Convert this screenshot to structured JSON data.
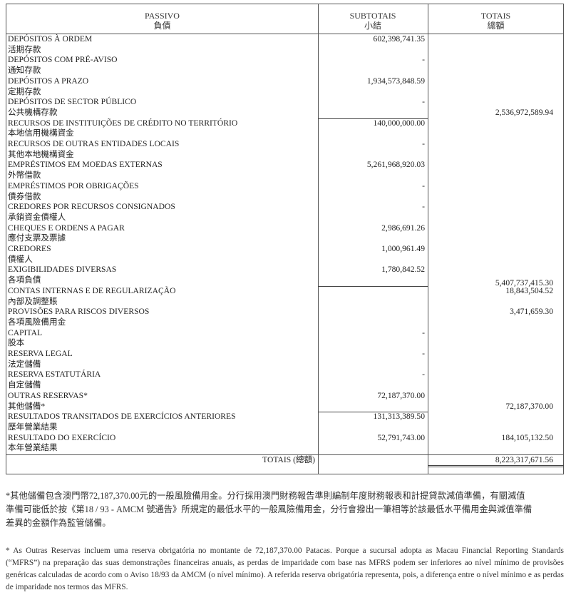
{
  "header": {
    "passivo": "PASSIVO",
    "passivo_cn": "負債",
    "subtotais": "SUBTOTAIS",
    "subtotais_cn": "小結",
    "totais": "TOTAIS",
    "totais_cn": "總額"
  },
  "items": [
    {
      "pt": "DEPÓSITOS À ORDEM",
      "cn": "活期存款",
      "subtotal": "602,398,741.35"
    },
    {
      "pt": "DEPÓSITOS COM PRÉ-AVISO",
      "cn": "通知存款",
      "subtotal": "-"
    },
    {
      "pt": "DEPÓSITOS A PRAZO",
      "cn": "定期存款",
      "subtotal": "1,934,573,848.59"
    },
    {
      "pt": "DEPÓSITOS DE SECTOR PÚBLICO",
      "cn": "公共機構存款",
      "subtotal": "-",
      "total": "2,536,972,589.94"
    },
    {
      "pt": "RECURSOS DE INSTITUIÇÕES DE CRÉDITO NO TERRITÓRIO",
      "cn": "本地信用機構資金",
      "subtotal": "140,000,000.00"
    },
    {
      "pt": "RECURSOS DE OUTRAS ENTIDADES LOCAIS",
      "cn": "其他本地機構資金",
      "subtotal": "-"
    },
    {
      "pt": "EMPRÉSTIMOS EM MOEDAS EXTERNAS",
      "cn": "外幣借款",
      "subtotal": "5,261,968,920.03"
    },
    {
      "pt": "EMPRÉSTIMOS POR OBRIGAÇÕES",
      "cn": "債券借款",
      "subtotal": "-"
    },
    {
      "pt": "CREDORES POR RECURSOS CONSIGNADOS",
      "cn": "承銷資金債權人",
      "subtotal": "-"
    },
    {
      "pt": "CHEQUES E ORDENS A PAGAR",
      "cn": "應付支票及票據",
      "subtotal": "2,986,691.26"
    },
    {
      "pt": "CREDORES",
      "cn": "債權人",
      "subtotal": "1,000,961.49"
    },
    {
      "pt": "EXIGIBILIDADES DIVERSAS",
      "cn": "各項負債",
      "subtotal": "1,780,842.52",
      "total": "5,407,737,415.30"
    },
    {
      "pt": "CONTAS INTERNAS E DE REGULARIZAÇÃO",
      "cn": "內部及調整賬",
      "subtotal": "",
      "total": "18,843,504.52"
    },
    {
      "pt": "PROVISÕES PARA RISCOS DIVERSOS",
      "cn": "各項風險備用金",
      "subtotal": "",
      "total": "3,471,659.30"
    },
    {
      "pt": "CAPITAL",
      "cn": "股本",
      "subtotal": "-"
    },
    {
      "pt": "RESERVA LEGAL",
      "cn": "法定儲備",
      "subtotal": "-"
    },
    {
      "pt": "RESERVA ESTATUTÁRIA",
      "cn": "自定儲備",
      "subtotal": "-"
    },
    {
      "pt": "OUTRAS RESERVAS*",
      "cn": "其他儲備*",
      "subtotal": "72,187,370.00",
      "total": "72,187,370.00"
    },
    {
      "pt": "RESULTADOS TRANSITADOS DE EXERCÍCIOS ANTERIORES",
      "cn": "歷年營業結果",
      "subtotal": "131,313,389.50"
    },
    {
      "pt": "RESULTADO DO EXERCÍCIO",
      "cn": "本年營業結果",
      "subtotal": "52,791,743.00",
      "total": "184,105,132.50"
    }
  ],
  "grand_total": {
    "label": "TOTAIS (總額)",
    "value": "8,223,317,671.56"
  },
  "notes": {
    "cn": "*其他儲備包含澳門幣72,187,370.00元的一般風險備用金。分行採用澳門財務報告準則編制年度財務報表和計提貸款減值準備，有關減值準備可能低於按《第18 / 93 - AMCM 號通告》所規定的最低水平的一般風險備用金，分行會撥出一筆相等於該最低水平備用金與減值準備差異的金額作為監管儲備。",
    "pt": "* As Outras Reservas incluem uma reserva obrigatória no montante de 72,187,370.00 Patacas. Porque a sucursal adopta as Macau Financial Reporting Standards (“MFRS”) na preparação das suas demonstrações financeiras anuais, as perdas de imparidade com base nas MFRS podem ser inferiores ao nível mínimo de provisões genéricas calculadas de acordo com o Aviso 18/93 da AMCM (o nível mínimo). A referida reserva obrigatória representa, pois, a diferença entre o nível mínimo e as perdas de imparidade nos termos das MFRS."
  }
}
